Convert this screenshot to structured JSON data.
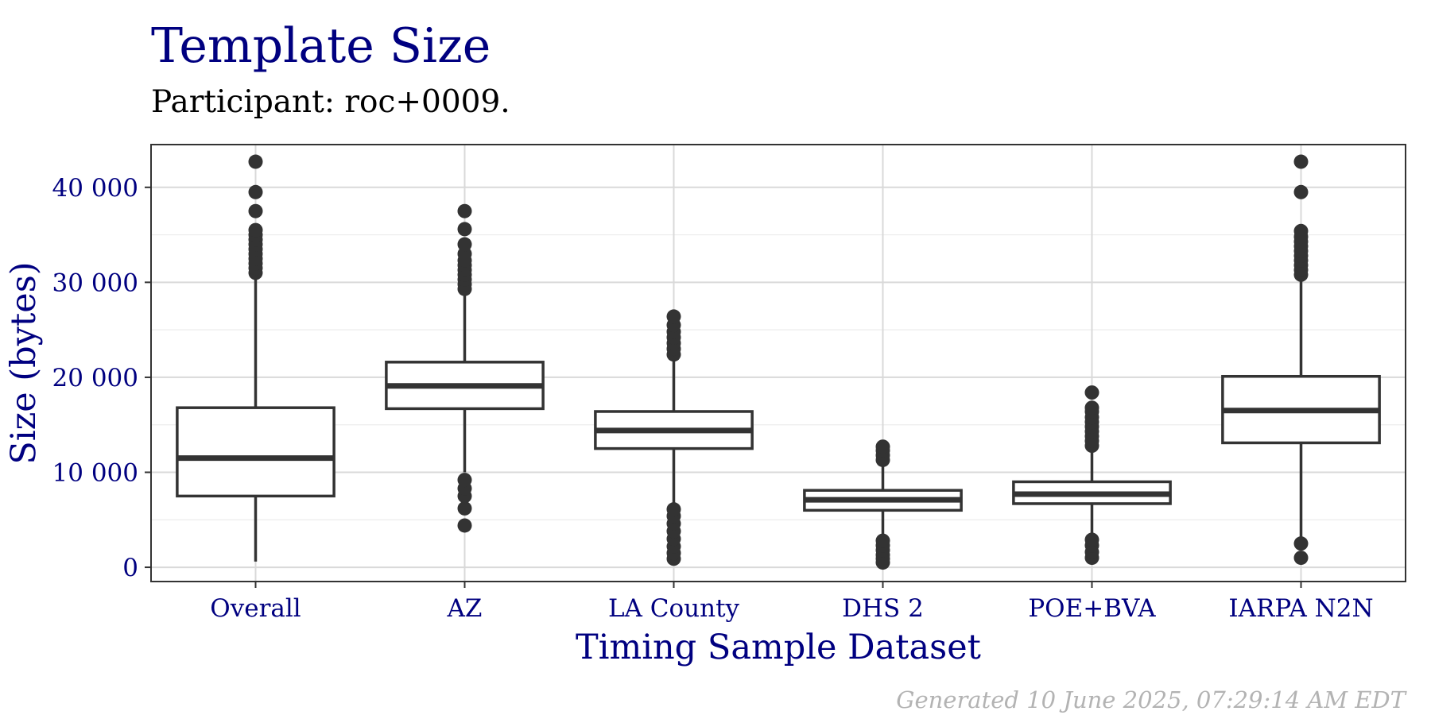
{
  "chart_data": {
    "type": "boxplot",
    "title": "Template Size",
    "subtitle": "Participant: roc+0009.",
    "xlabel": "Timing Sample Dataset",
    "ylabel": "Size (bytes)",
    "caption": "Generated 10 June 2025, 07:29:14 AM EDT",
    "ylim": [
      -1500,
      44500
    ],
    "yticks": [
      0,
      10000,
      20000,
      30000,
      40000
    ],
    "ytick_labels": [
      "0",
      "10 000",
      "20 000",
      "30 000",
      "40 000"
    ],
    "grid": true,
    "categories": [
      "Overall",
      "AZ",
      "LA County",
      "DHS 2",
      "POE+BVA",
      "IARPA N2N"
    ],
    "boxes": [
      {
        "name": "Overall",
        "whisker_low": 600,
        "q1": 7500,
        "median": 11500,
        "q3": 16800,
        "whisker_high": 30800,
        "outliers": [
          31000,
          31500,
          32000,
          32500,
          33000,
          33500,
          34000,
          34500,
          35000,
          35500,
          37500,
          39500,
          42700
        ]
      },
      {
        "name": "AZ",
        "whisker_low": 10000,
        "q1": 16700,
        "median": 19100,
        "q3": 21600,
        "whisker_high": 29000,
        "outliers": [
          4400,
          6200,
          7500,
          8300,
          9200,
          29300,
          29800,
          30300,
          30800,
          31300,
          31800,
          32300,
          33000,
          34000,
          35600,
          37500
        ]
      },
      {
        "name": "LA County",
        "whisker_low": 6800,
        "q1": 12500,
        "median": 14400,
        "q3": 16400,
        "whisker_high": 22000,
        "outliers": [
          900,
          1500,
          2200,
          3000,
          3800,
          4600,
          5400,
          6100,
          22400,
          23000,
          23600,
          24200,
          24800,
          25500,
          26400
        ]
      },
      {
        "name": "DHS 2",
        "whisker_low": 3000,
        "q1": 6000,
        "median": 7100,
        "q3": 8100,
        "whisker_high": 11000,
        "outliers": [
          500,
          900,
          1300,
          1800,
          2300,
          2800,
          11300,
          11800,
          12300,
          12700
        ]
      },
      {
        "name": "POE+BVA",
        "whisker_low": 3000,
        "q1": 6700,
        "median": 7700,
        "q3": 9000,
        "whisker_high": 12500,
        "outliers": [
          1000,
          1600,
          2300,
          2900,
          12800,
          13300,
          13800,
          14300,
          14800,
          15300,
          15800,
          16400,
          16800,
          18400
        ]
      },
      {
        "name": "IARPA N2N",
        "whisker_low": 3000,
        "q1": 13100,
        "median": 16500,
        "q3": 20100,
        "whisker_high": 30500,
        "outliers": [
          1000,
          2500,
          30800,
          31300,
          31800,
          32300,
          32800,
          33300,
          33800,
          34300,
          34800,
          35400,
          39500,
          42700
        ]
      }
    ]
  },
  "colors": {
    "title": "#000080",
    "axis_text": "#000080",
    "box_stroke": "#333333",
    "grid": "#d9d9d9",
    "grid_minor": "#ebebeb",
    "panel_border": "#333333",
    "caption": "#b3b3b3"
  }
}
